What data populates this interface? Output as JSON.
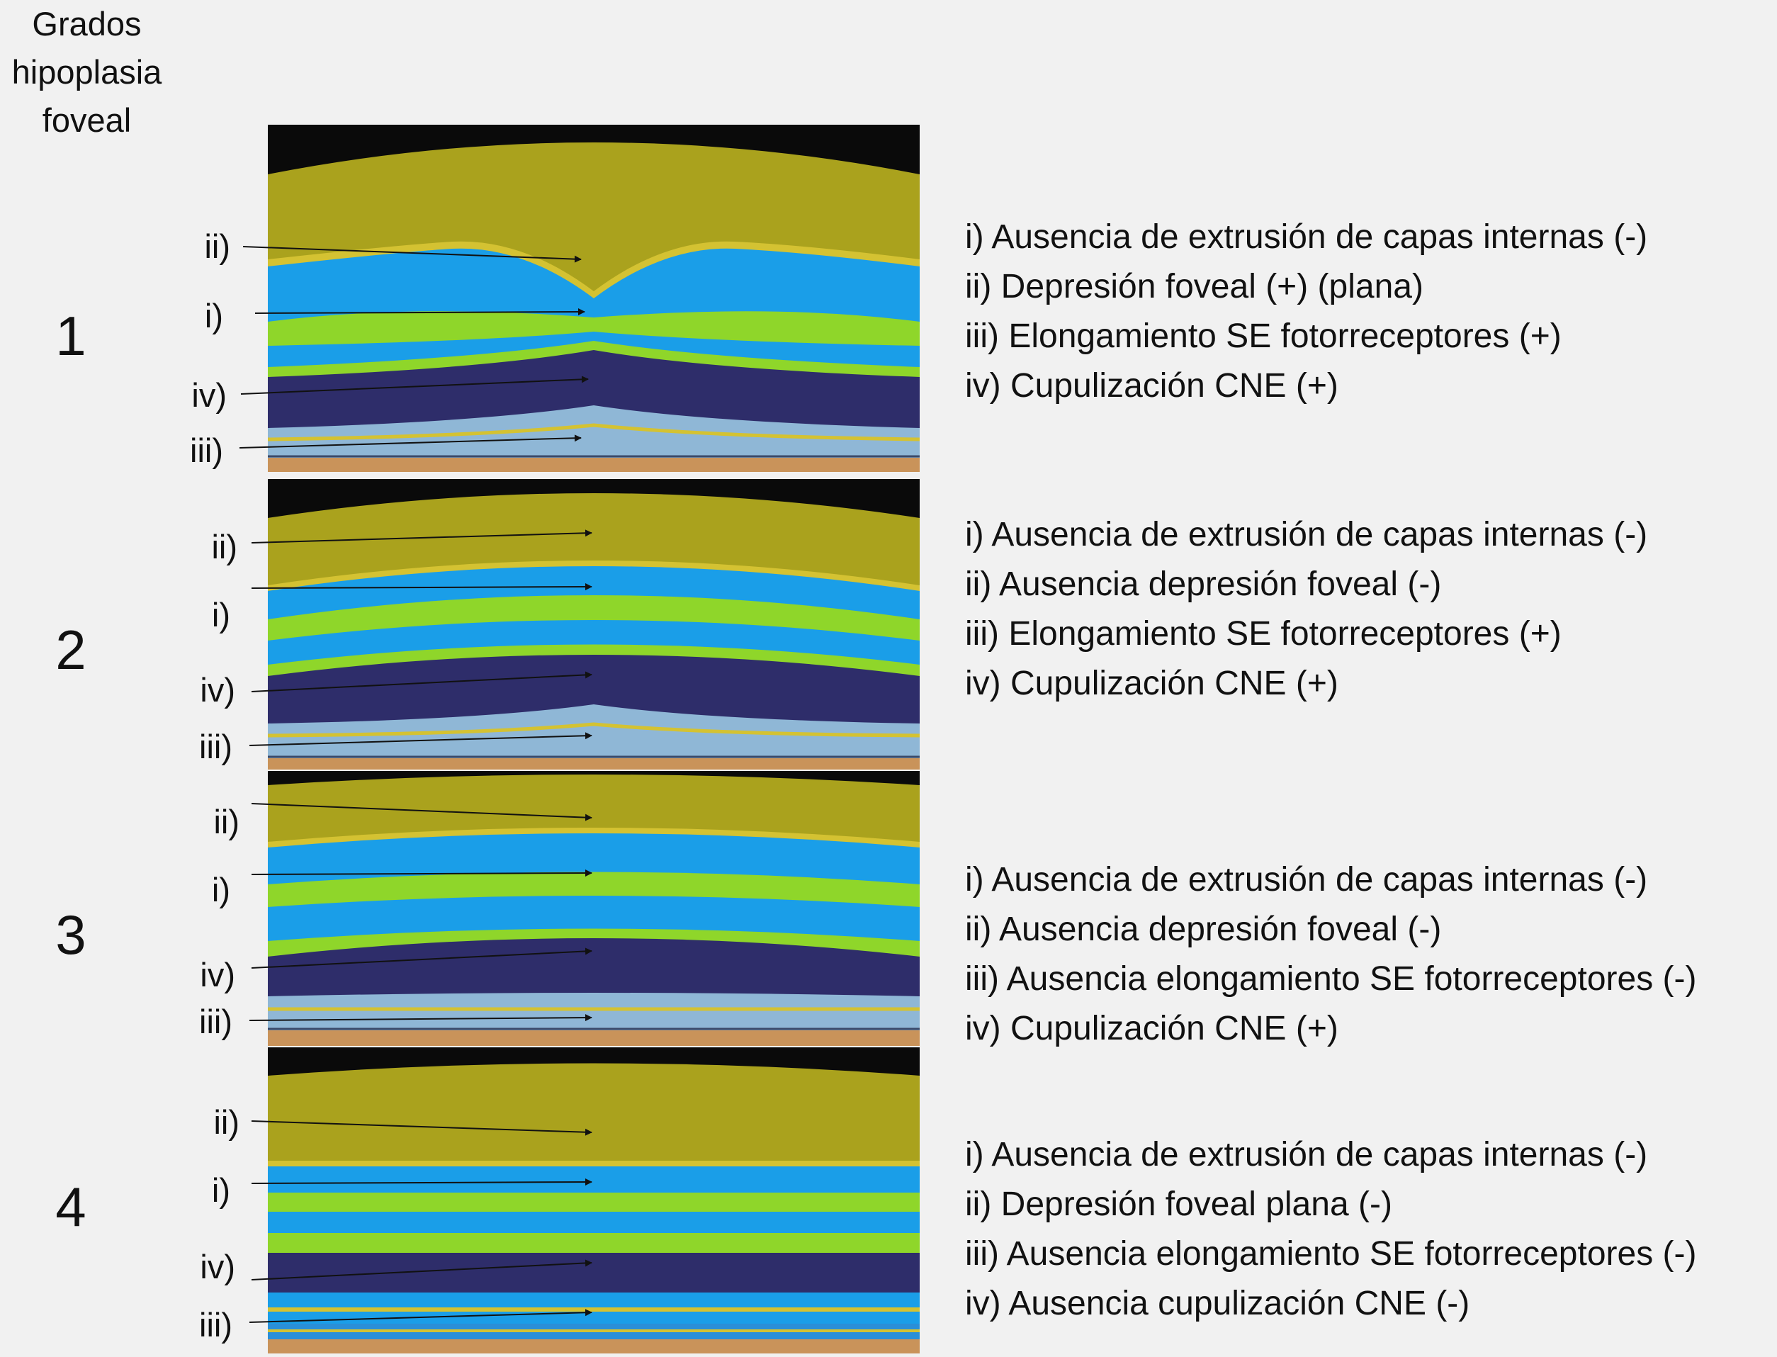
{
  "header": {
    "lines": [
      "Grados",
      "hipoplasia",
      "foveal"
    ]
  },
  "grades": [
    {
      "number": "1",
      "labels": [
        "ii)",
        "i)",
        "iv)",
        "iii)"
      ],
      "items": [
        "i) Ausencia de extrusión de capas internas (-)",
        "ii) Depresión foveal (+) (plana)",
        "iii) Elongamiento SE fotorreceptores (+)",
        "iv) Cupulización CNE (+)"
      ]
    },
    {
      "number": "2",
      "labels": [
        "ii)",
        "i)",
        "iv)",
        "iii)"
      ],
      "items": [
        "i) Ausencia de extrusión de capas internas (-)",
        "ii) Ausencia depresión foveal (-)",
        "iii) Elongamiento SE fotorreceptores (+)",
        "iv) Cupulización CNE (+)"
      ]
    },
    {
      "number": "3",
      "labels": [
        "ii)",
        "i)",
        "iv)",
        "iii)"
      ],
      "items": [
        "i) Ausencia de extrusión de capas internas (-)",
        "ii) Ausencia depresión foveal (-)",
        "iii) Ausencia elongamiento SE fotorreceptores (-)",
        "iv) Cupulización CNE (+)"
      ]
    },
    {
      "number": "4",
      "labels": [
        "ii)",
        "i)",
        "iv)",
        "iii)"
      ],
      "items": [
        "i) Ausencia de extrusión de capas internas (-)",
        "ii) Depresión foveal plana (-)",
        "iii) Ausencia elongamiento SE fotorreceptores (-)",
        "iv) Ausencia cupulización CNE (-)"
      ]
    }
  ],
  "colors": {
    "background": "#f1f1f1",
    "vitreous": "#0a0a0a",
    "nfl_ganglion": "#aaa21d",
    "thin_yellow": "#d4c232",
    "blue_layer": "#1a9ee8",
    "green_layer": "#8fd62a",
    "onl_dark": "#2e2d6a",
    "pale_blue": "#8fb7d6",
    "rpe_orange": "#c9935a"
  }
}
